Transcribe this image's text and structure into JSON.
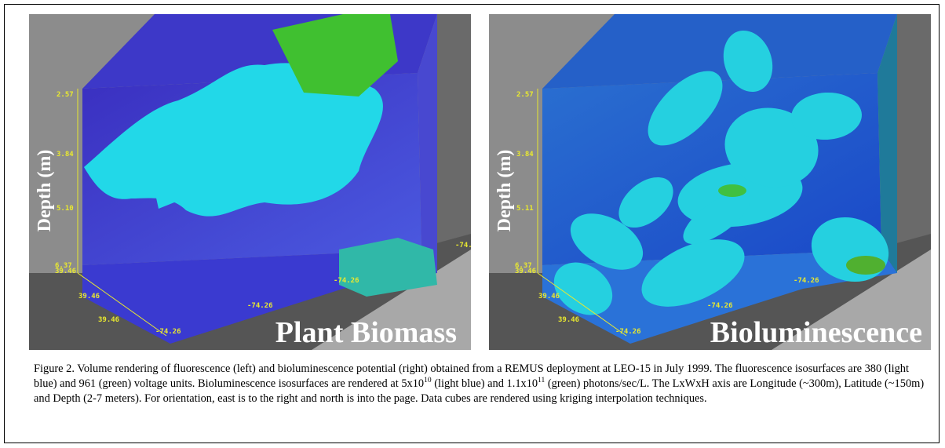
{
  "panels": [
    {
      "axis_label": "Depth (m)",
      "depth_ticks": [
        "2.57",
        "3.84",
        "5.10",
        "6.37"
      ],
      "lat_ticks": [
        "39.46",
        "39.46",
        "39.46"
      ],
      "lon_ticks": [
        "-74.26",
        "-74.26",
        "-74.26",
        "-74."
      ],
      "label": "Plant Biomass"
    },
    {
      "axis_label": "Depth (m)",
      "depth_ticks": [
        "2.57",
        "3.84",
        "5.11",
        "6.37"
      ],
      "lat_ticks": [
        "39.46",
        "39.46",
        "39.46"
      ],
      "lon_ticks": [
        "-74.26",
        "-74.26",
        "-74.26"
      ],
      "label": "Bioluminescence"
    }
  ],
  "caption": [
    "Figure 2. Volume rendering of fluorescence (left) and bioluminescence potential (right) obtained from a REMUS deployment at LEO-15 in July 1999. The fluorescence isosurfaces are 380 (light blue) and 961 (green) voltage units. Bioluminescence isosurfaces are rendered at 5x10",
    "10",
    " (light blue) and 1.1x10",
    "11",
    " (green) photons/sec/L.  The LxWxH axis are Longitude (~300m), Latitude (~150m) and Depth (2-7 meters). For orientation, east is to the right and north is into the page. Data cubes are rendered using kriging interpolation techniques."
  ]
}
